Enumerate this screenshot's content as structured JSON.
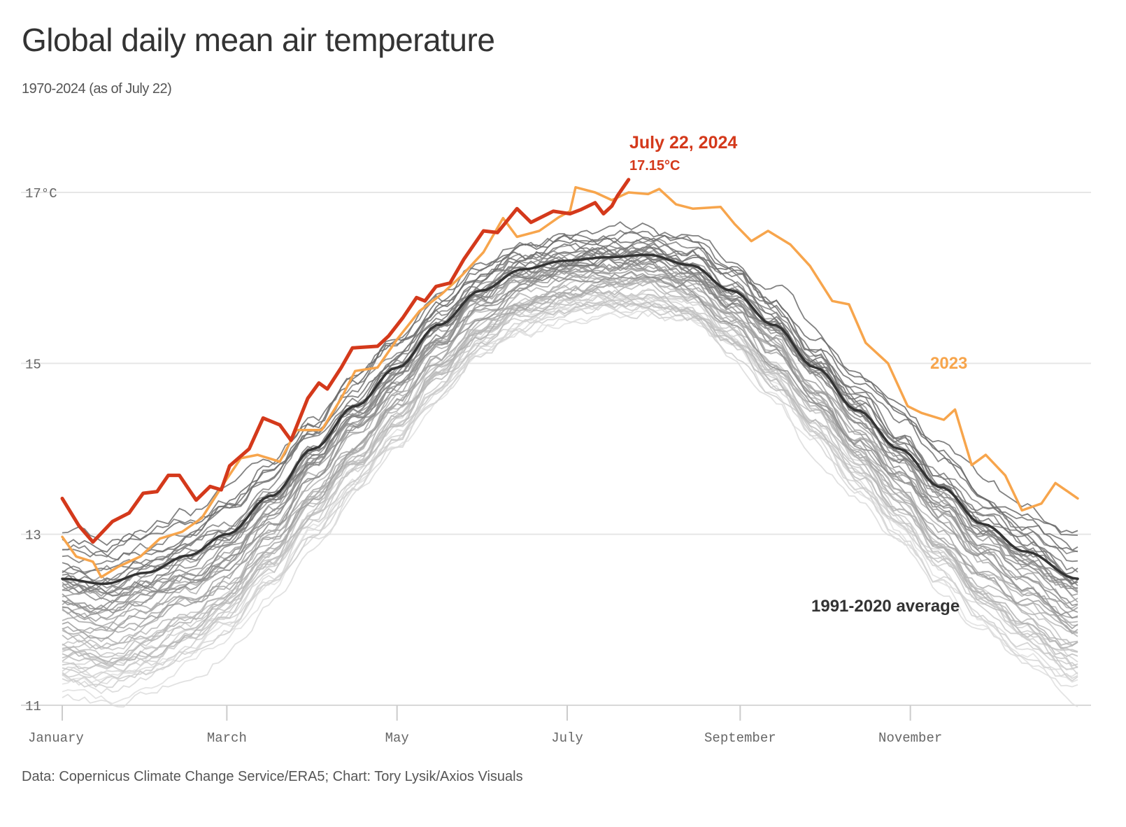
{
  "chart_data": {
    "type": "line",
    "title": "Global daily mean air temperature",
    "subtitle": "1970-2024 (as of July 22)",
    "source": "Data: Copernicus Climate Change Service/ERA5; Chart: Tory Lysik/Axios Visuals",
    "xlabel": "",
    "ylabel": "",
    "x_unit": "day of year",
    "xlim": [
      0,
      364
    ],
    "ylim": [
      11,
      17.5
    ],
    "grid": true,
    "y_ticks": [
      {
        "value": 17,
        "label": "17°C"
      },
      {
        "value": 15,
        "label": "15"
      },
      {
        "value": 13,
        "label": "13"
      },
      {
        "value": 11,
        "label": "11"
      }
    ],
    "x_ticks": [
      {
        "day": 0,
        "label": "January"
      },
      {
        "day": 59,
        "label": "March"
      },
      {
        "day": 120,
        "label": "May"
      },
      {
        "day": 181,
        "label": "July"
      },
      {
        "day": 243,
        "label": "September"
      },
      {
        "day": 304,
        "label": "November"
      }
    ],
    "annotations": {
      "latest_date": "July 22, 2024",
      "latest_value": "17.15°C",
      "label_2023": "2023",
      "label_average": "1991-2020 average"
    },
    "colors": {
      "y2024": "#d4391b",
      "y2023": "#f7a54c",
      "average": "#333333",
      "background": "#8a8a8a"
    },
    "background_years": {
      "start": 1970,
      "end": 2022,
      "offset_start": -0.95,
      "offset_end": 0.3
    },
    "series": [
      {
        "name": "1991-2020 average",
        "points": [
          [
            0,
            12.48
          ],
          [
            15,
            12.42
          ],
          [
            30,
            12.55
          ],
          [
            45,
            12.75
          ],
          [
            59,
            13.0
          ],
          [
            75,
            13.45
          ],
          [
            90,
            14.0
          ],
          [
            105,
            14.5
          ],
          [
            120,
            14.95
          ],
          [
            135,
            15.45
          ],
          [
            150,
            15.85
          ],
          [
            165,
            16.1
          ],
          [
            180,
            16.2
          ],
          [
            195,
            16.24
          ],
          [
            210,
            16.27
          ],
          [
            225,
            16.15
          ],
          [
            240,
            15.85
          ],
          [
            255,
            15.45
          ],
          [
            270,
            14.95
          ],
          [
            285,
            14.45
          ],
          [
            300,
            14.0
          ],
          [
            315,
            13.55
          ],
          [
            330,
            13.12
          ],
          [
            345,
            12.8
          ],
          [
            364,
            12.48
          ]
        ]
      },
      {
        "name": "2023",
        "points": [
          [
            0,
            12.97
          ],
          [
            5,
            12.74
          ],
          [
            11,
            12.68
          ],
          [
            14,
            12.5
          ],
          [
            20,
            12.62
          ],
          [
            28,
            12.74
          ],
          [
            35,
            12.95
          ],
          [
            43,
            13.03
          ],
          [
            50,
            13.19
          ],
          [
            58,
            13.6
          ],
          [
            64,
            13.89
          ],
          [
            70,
            13.93
          ],
          [
            78,
            13.85
          ],
          [
            84,
            14.22
          ],
          [
            93,
            14.22
          ],
          [
            100,
            14.59
          ],
          [
            105,
            14.91
          ],
          [
            113,
            14.95
          ],
          [
            120,
            15.28
          ],
          [
            128,
            15.61
          ],
          [
            136,
            15.81
          ],
          [
            143,
            16.02
          ],
          [
            151,
            16.3
          ],
          [
            158,
            16.7
          ],
          [
            163,
            16.48
          ],
          [
            171,
            16.55
          ],
          [
            178,
            16.71
          ],
          [
            182,
            16.78
          ],
          [
            184,
            17.06
          ],
          [
            191,
            17.0
          ],
          [
            197,
            16.91
          ],
          [
            203,
            17.0
          ],
          [
            210,
            16.98
          ],
          [
            214,
            17.04
          ],
          [
            220,
            16.86
          ],
          [
            226,
            16.81
          ],
          [
            236,
            16.83
          ],
          [
            241,
            16.63
          ],
          [
            247,
            16.43
          ],
          [
            253,
            16.55
          ],
          [
            261,
            16.39
          ],
          [
            268,
            16.14
          ],
          [
            276,
            15.73
          ],
          [
            282,
            15.69
          ],
          [
            288,
            15.24
          ],
          [
            296,
            15.0
          ],
          [
            303,
            14.5
          ],
          [
            308,
            14.42
          ],
          [
            316,
            14.34
          ],
          [
            320,
            14.46
          ],
          [
            326,
            13.81
          ],
          [
            331,
            13.93
          ],
          [
            338,
            13.69
          ],
          [
            344,
            13.28
          ],
          [
            351,
            13.36
          ],
          [
            356,
            13.6
          ],
          [
            364,
            13.42
          ]
        ]
      },
      {
        "name": "2024",
        "points": [
          [
            0,
            13.42
          ],
          [
            6,
            13.1
          ],
          [
            11,
            12.91
          ],
          [
            18,
            13.15
          ],
          [
            24,
            13.25
          ],
          [
            29,
            13.48
          ],
          [
            34,
            13.5
          ],
          [
            38,
            13.69
          ],
          [
            42,
            13.69
          ],
          [
            48,
            13.4
          ],
          [
            53,
            13.56
          ],
          [
            57,
            13.52
          ],
          [
            60,
            13.8
          ],
          [
            67,
            14.0
          ],
          [
            72,
            14.36
          ],
          [
            78,
            14.28
          ],
          [
            82,
            14.1
          ],
          [
            88,
            14.59
          ],
          [
            92,
            14.77
          ],
          [
            95,
            14.7
          ],
          [
            100,
            14.95
          ],
          [
            104,
            15.18
          ],
          [
            113,
            15.2
          ],
          [
            117,
            15.32
          ],
          [
            122,
            15.53
          ],
          [
            127,
            15.77
          ],
          [
            130,
            15.73
          ],
          [
            134,
            15.9
          ],
          [
            139,
            15.94
          ],
          [
            144,
            16.22
          ],
          [
            151,
            16.55
          ],
          [
            156,
            16.53
          ],
          [
            163,
            16.81
          ],
          [
            168,
            16.65
          ],
          [
            176,
            16.78
          ],
          [
            182,
            16.75
          ],
          [
            186,
            16.8
          ],
          [
            191,
            16.88
          ],
          [
            194,
            16.75
          ],
          [
            197,
            16.84
          ],
          [
            199,
            16.96
          ],
          [
            203,
            17.15
          ]
        ]
      }
    ]
  }
}
